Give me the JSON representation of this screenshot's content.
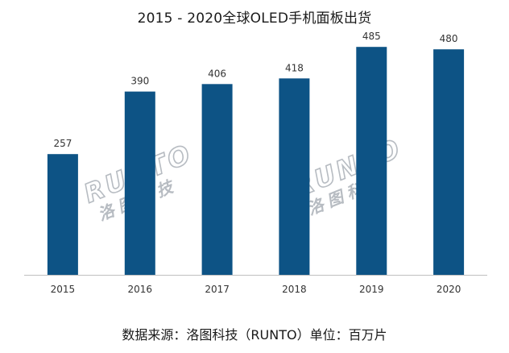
{
  "chart_data": {
    "type": "bar",
    "title": "2015 - 2020全球OLED手机面板出货",
    "categories": [
      "2015",
      "2016",
      "2017",
      "2018",
      "2019",
      "2020"
    ],
    "values": [
      257,
      390,
      406,
      418,
      485,
      480
    ],
    "bar_color": "#0d5385",
    "ylim": [
      0,
      530
    ],
    "grid": false,
    "legend": "none",
    "source_text": "数据来源：洛图科技（RUNTO）单位：百万片"
  },
  "watermark": {
    "latin": "RUNTO",
    "chinese": "洛图科技"
  }
}
